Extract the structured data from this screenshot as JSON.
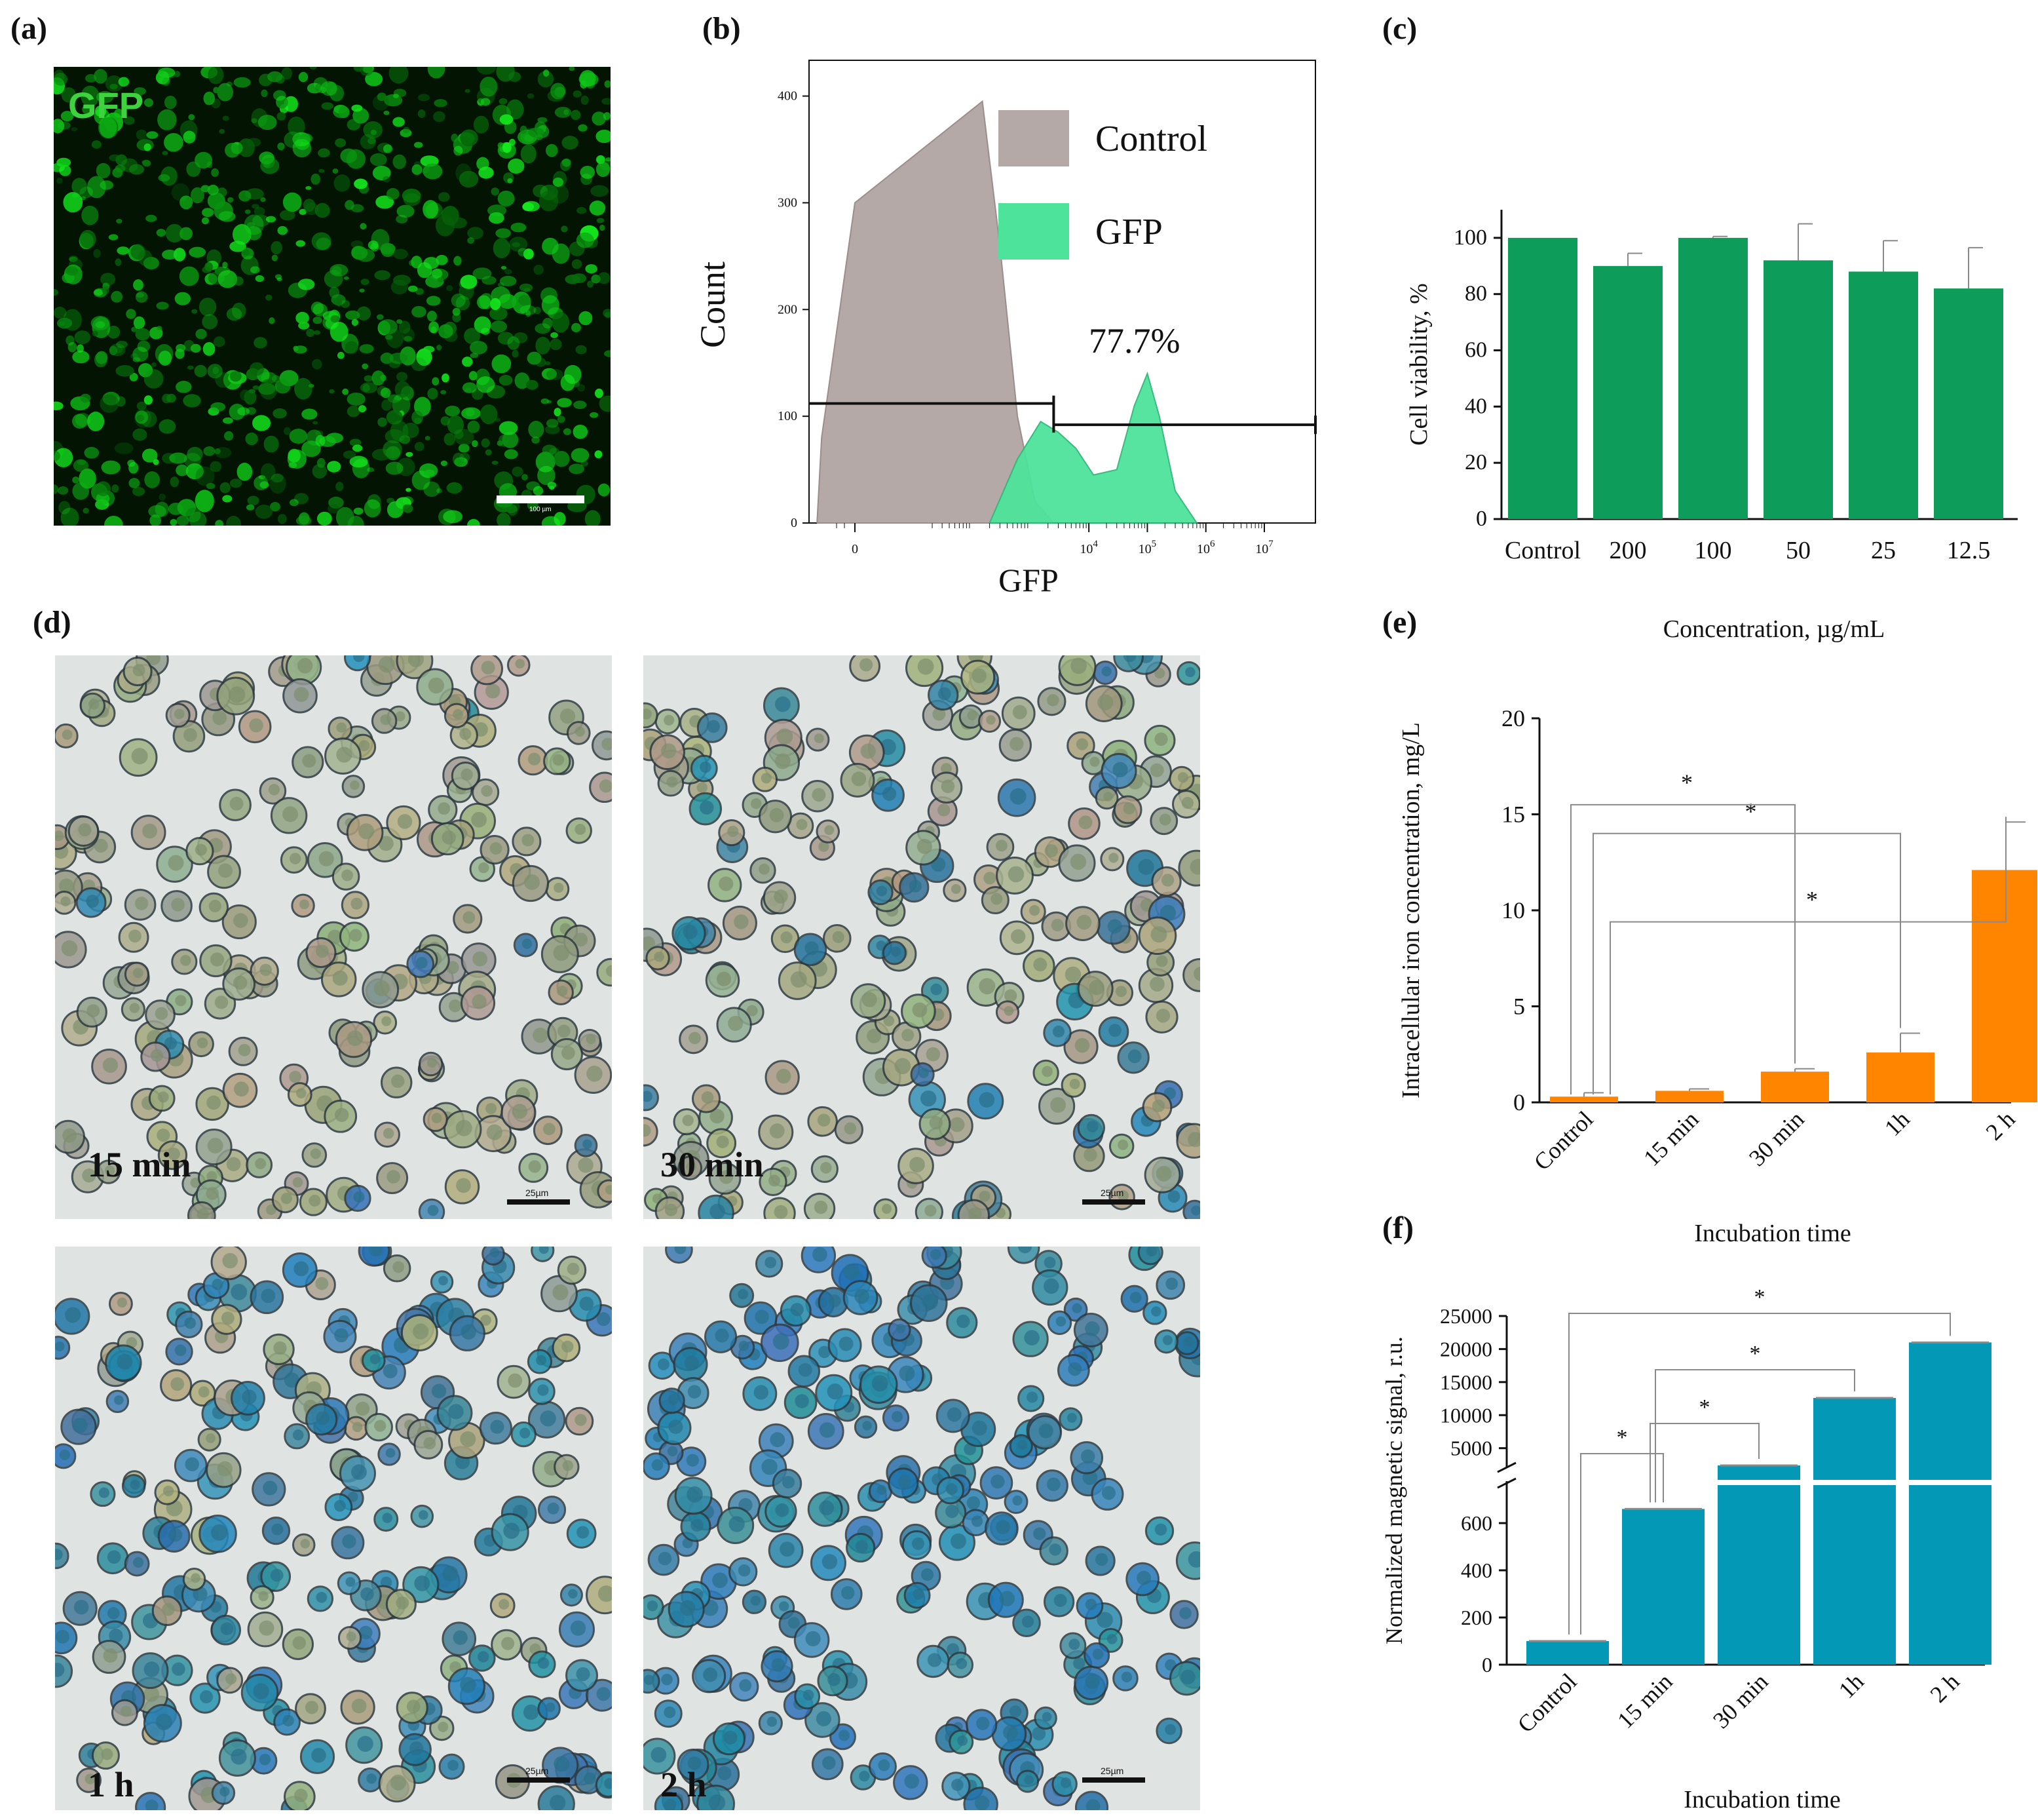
{
  "panels": {
    "a": {
      "label": "(a)",
      "image_text": "GFP",
      "scale_text": "100 µm"
    },
    "b": {
      "label": "(b)"
    },
    "c": {
      "label": "(c)"
    },
    "d": {
      "label": "(d)"
    },
    "e": {
      "label": "(e)"
    },
    "f": {
      "label": "(f)"
    }
  },
  "micrographs": [
    {
      "label": "15 min",
      "scale_text": "25µm",
      "stain_level": 0.05
    },
    {
      "label": "30 min",
      "scale_text": "25µm",
      "stain_level": 0.2
    },
    {
      "label": "1 h",
      "scale_text": "25µm",
      "stain_level": 0.7
    },
    {
      "label": "2 h",
      "scale_text": "25µm",
      "stain_level": 1.0
    }
  ],
  "colors": {
    "control_hist": "#b5a9a8",
    "gfp_hist": "#4de39b",
    "viability_bar": "#0d9c5a",
    "iron_bar": "#ff8400",
    "magnetic_bar": "#0399b6",
    "gfp_image": "#22c832"
  },
  "chart_data": [
    {
      "type": "area",
      "panel": "b",
      "xlabel": "GFP",
      "ylabel": "Count",
      "xscale": "biexponential",
      "x_tick_labels": [
        "0",
        "10^4",
        "10^5",
        "10^6",
        "10^7"
      ],
      "y_ticks": [
        0,
        100,
        200,
        300,
        400
      ],
      "ylim": [
        0,
        420
      ],
      "legend": {
        "position": "top-right",
        "entries": [
          "Control",
          "GFP"
        ]
      },
      "annotation": "77.7%",
      "series": [
        {
          "name": "Control",
          "x": [
            -300,
            -150,
            0,
            150,
            300,
            600,
            1200,
            2500
          ],
          "values": [
            0,
            80,
            300,
            395,
            260,
            100,
            20,
            0
          ]
        },
        {
          "name": "GFP",
          "x": [
            200,
            600,
            1500,
            3000,
            6000,
            12000,
            30000,
            60000,
            100000,
            160000,
            300000,
            700000
          ],
          "values": [
            0,
            60,
            95,
            85,
            70,
            45,
            50,
            110,
            140,
            100,
            30,
            0
          ]
        }
      ]
    },
    {
      "type": "bar",
      "panel": "c",
      "categories": [
        "Control",
        "200",
        "100",
        "50",
        "25",
        "12.5"
      ],
      "values": [
        100,
        90,
        100,
        92,
        88,
        82
      ],
      "errors": [
        0,
        4.5,
        0.5,
        13,
        11,
        14.5
      ],
      "xlabel": "Concentration, µg/mL",
      "ylabel": "Cell viability, %",
      "ylim": [
        0,
        110
      ],
      "y_ticks": [
        0,
        20,
        40,
        60,
        80,
        100
      ]
    },
    {
      "type": "bar",
      "panel": "e",
      "categories": [
        "Control",
        "15 min",
        "30 min",
        "1h",
        "2 h"
      ],
      "values": [
        0.3,
        0.6,
        1.6,
        2.6,
        12.1
      ],
      "errors": [
        0.2,
        0.1,
        0.15,
        1.0,
        2.5
      ],
      "xlabel": "Incubation time",
      "ylabel": "Intracellular iron concentration, mg/L",
      "ylim": [
        0,
        20
      ],
      "y_ticks": [
        0,
        5,
        10,
        15,
        20
      ],
      "significance": [
        {
          "from": "Control",
          "to": "30 min",
          "label": "*"
        },
        {
          "from": "Control",
          "to": "1h",
          "label": "*"
        },
        {
          "from": "Control",
          "to": "2 h",
          "label": "*"
        }
      ]
    },
    {
      "type": "bar",
      "panel": "f",
      "categories": [
        "Control",
        "15 min",
        "30 min",
        "1h",
        "2 h"
      ],
      "values": [
        100,
        660,
        2300,
        12600,
        21000
      ],
      "errors": [
        10,
        10,
        100,
        150,
        150
      ],
      "xlabel": "Incubation time",
      "ylabel": "Normalized magnetic signal, r.u.",
      "axis_break": true,
      "lower_ylim": [
        0,
        700
      ],
      "lower_y_ticks": [
        0,
        200,
        400,
        600
      ],
      "upper_ylim": [
        1000,
        25000
      ],
      "upper_y_ticks": [
        5000,
        10000,
        15000,
        20000,
        25000
      ],
      "significance": [
        {
          "from": "Control",
          "to": "15 min",
          "label": "*"
        },
        {
          "from": "15 min",
          "to": "30 min",
          "label": "*"
        },
        {
          "from": "15 min",
          "to": "1h",
          "label": "*"
        },
        {
          "from": "Control",
          "to": "2 h",
          "label": "*"
        }
      ]
    }
  ]
}
